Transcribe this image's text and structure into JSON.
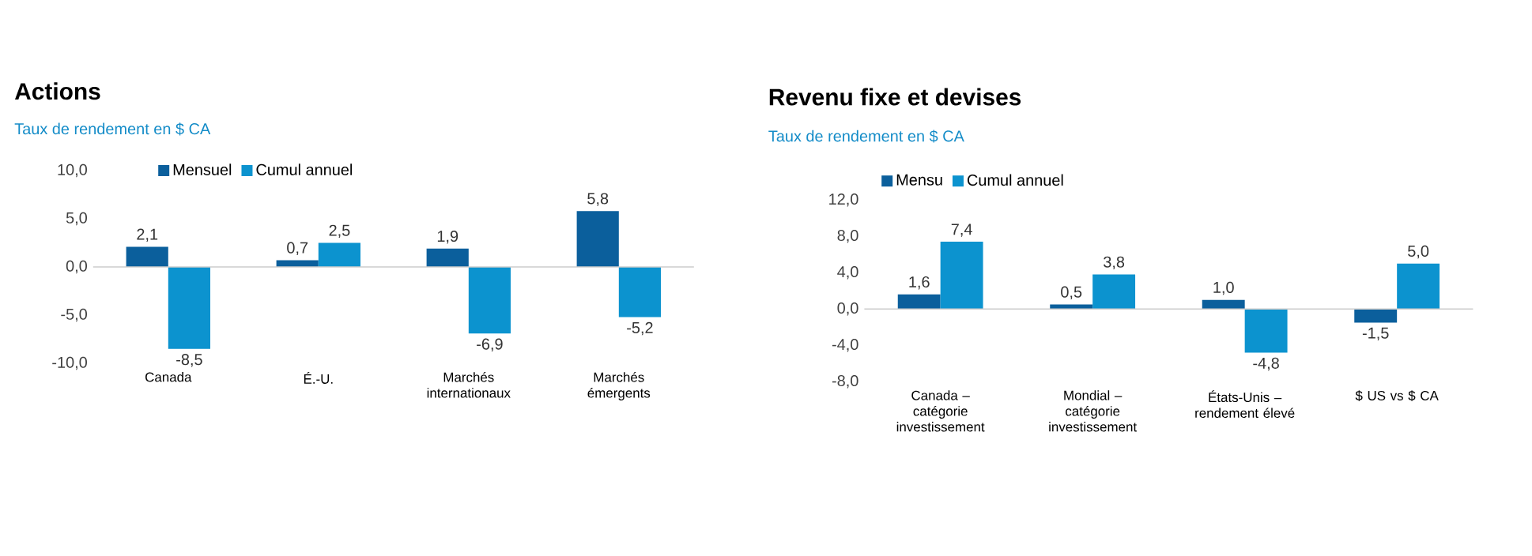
{
  "chart_data": [
    {
      "type": "bar",
      "title": "Actions",
      "subtitle": "Taux de rendement en $ CA",
      "categories": [
        "Canada",
        "É.-U.",
        "Marchés internationaux",
        "Marchés émergents"
      ],
      "series": [
        {
          "name": "Mensuel",
          "color": "#0b5f9c",
          "values": [
            2.1,
            0.7,
            1.9,
            5.8
          ],
          "value_labels": [
            "2,1",
            "0,7",
            "1,9",
            "5,8"
          ]
        },
        {
          "name": "Cumul annuel",
          "color": "#0c93cf",
          "values": [
            -8.5,
            2.5,
            -6.9,
            -5.2
          ],
          "value_labels": [
            "-8,5",
            "2,5",
            "-6,9",
            "-5,2"
          ]
        }
      ],
      "ylim": [
        -10,
        10
      ],
      "yticks": [
        {
          "value": -10,
          "label": "-10,0"
        },
        {
          "value": -5,
          "label": "-5,0"
        },
        {
          "value": 0,
          "label": "0,0"
        },
        {
          "value": 5,
          "label": "5,0"
        },
        {
          "value": 10,
          "label": "10,0"
        }
      ],
      "legend": "top left"
    },
    {
      "type": "bar",
      "title": "Revenu fixe et devises",
      "subtitle": "Taux de rendement en $ CA",
      "categories": [
        "Canada – catégorie investissement",
        "Mondial – catégorie investissement",
        "États-Unis – rendement élevé",
        "$ US vs $ CA"
      ],
      "series": [
        {
          "name": "Mensu",
          "color": "#0b5f9c",
          "values": [
            1.6,
            0.5,
            1.0,
            -1.5
          ],
          "value_labels": [
            "1,6",
            "0,5",
            "1,0",
            "-1,5"
          ]
        },
        {
          "name": "Cumul annuel",
          "color": "#0c93cf",
          "values": [
            7.4,
            3.8,
            -4.8,
            5.0
          ],
          "value_labels": [
            "7,4",
            "3,8",
            "-4,8",
            "5,0"
          ]
        }
      ],
      "ylim": [
        -8,
        12
      ],
      "yticks": [
        {
          "value": -8,
          "label": "-8,0"
        },
        {
          "value": -4,
          "label": "-4,0"
        },
        {
          "value": 0,
          "label": "0,0"
        },
        {
          "value": 4,
          "label": "4,0"
        },
        {
          "value": 8,
          "label": "8,0"
        },
        {
          "value": 12,
          "label": "12,0"
        }
      ],
      "legend": "top"
    }
  ]
}
